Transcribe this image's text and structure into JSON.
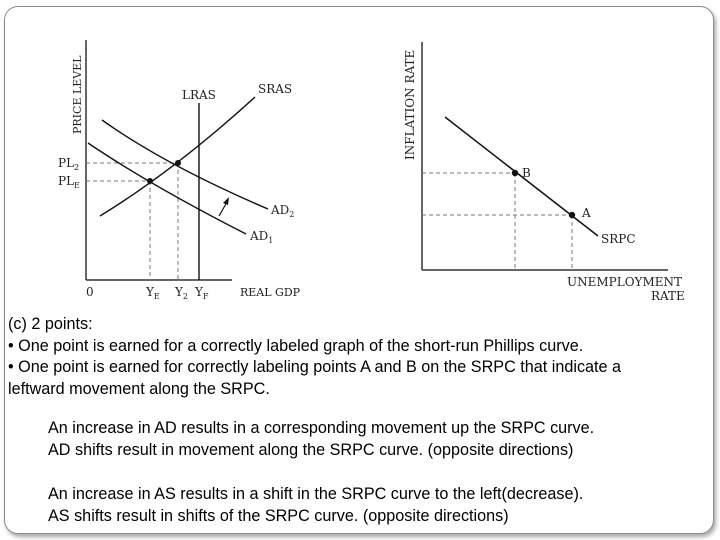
{
  "left_graph": {
    "y_axis_label": "PRICE LEVEL",
    "x_axis_label": "REAL GDP",
    "origin_label": "0",
    "lras_label": "LRAS",
    "sras_label": "SRAS",
    "ad2_label": "AD2",
    "ad1_label": "AD1",
    "pl2_label": "PL2",
    "ple_label": "PLE",
    "ye_label": "YE",
    "y2_label": "Y2",
    "yf_label": "YF"
  },
  "right_graph": {
    "y_axis_label": "INFLATION RATE",
    "x_axis_label_line1": "UNEMPLOYMENT",
    "x_axis_label_line2": "RATE",
    "point_b_label": "B",
    "point_a_label": "A",
    "curve_label": "SRPC"
  },
  "text": {
    "line1": "(c) 2 points:",
    "line2": "• One point is earned for a correctly labeled graph of the short-run Phillips curve.",
    "line3": "• One point is earned for correctly labeling points A and B on the SRPC that indicate a",
    "line4": "leftward movement along the SRPC.",
    "line5": "An increase in AD results in a corresponding movement up the SRPC curve.",
    "line6": "AD shifts result in movement along the SRPC curve.  (opposite directions)",
    "line7": "An increase in AS results in a shift in the SRPC curve to the left(decrease).",
    "line8": "AS shifts result in shifts of the SRPC curve.  (opposite directions)"
  }
}
